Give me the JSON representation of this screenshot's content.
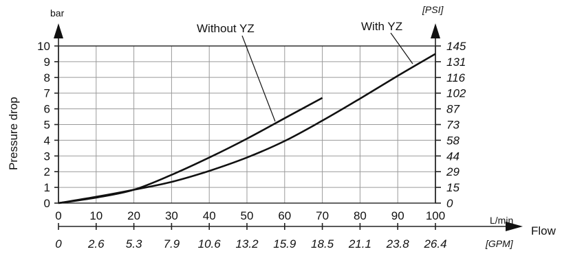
{
  "chart_data": {
    "type": "line",
    "xlabel": "Flow",
    "ylabel": "Pressure drop",
    "x_unit": "L/min",
    "x_secondary_unit": "[GPM]",
    "y_unit": "bar",
    "y_secondary_unit": "[PSI]",
    "xlim": [
      0,
      100
    ],
    "ylim": [
      0,
      10
    ],
    "grid": true,
    "x_ticks": [
      "0",
      "10",
      "20",
      "30",
      "40",
      "50",
      "60",
      "70",
      "80",
      "90",
      "100"
    ],
    "x_secondary_ticks": [
      "0",
      "2.6",
      "5.3",
      "7.9",
      "10.6",
      "13.2",
      "15.9",
      "18.5",
      "21.1",
      "23.8",
      "26.4"
    ],
    "y_ticks": [
      "0",
      "1",
      "2",
      "3",
      "4",
      "5",
      "6",
      "7",
      "8",
      "9",
      "10"
    ],
    "y_secondary_ticks": [
      "0",
      "15",
      "29",
      "44",
      "58",
      "73",
      "87",
      "102",
      "116",
      "131",
      "145"
    ],
    "series": [
      {
        "name": "Without YZ",
        "x": [
          0,
          10,
          20,
          30,
          40,
          50,
          60,
          70
        ],
        "y": [
          0,
          0.35,
          0.85,
          1.8,
          2.9,
          4.1,
          5.4,
          6.7
        ]
      },
      {
        "name": "With YZ",
        "x": [
          0,
          10,
          20,
          30,
          40,
          50,
          60,
          70,
          80,
          90,
          100
        ],
        "y": [
          0,
          0.4,
          0.85,
          1.35,
          2.05,
          2.9,
          3.95,
          5.25,
          6.65,
          8.1,
          9.5
        ]
      }
    ]
  }
}
